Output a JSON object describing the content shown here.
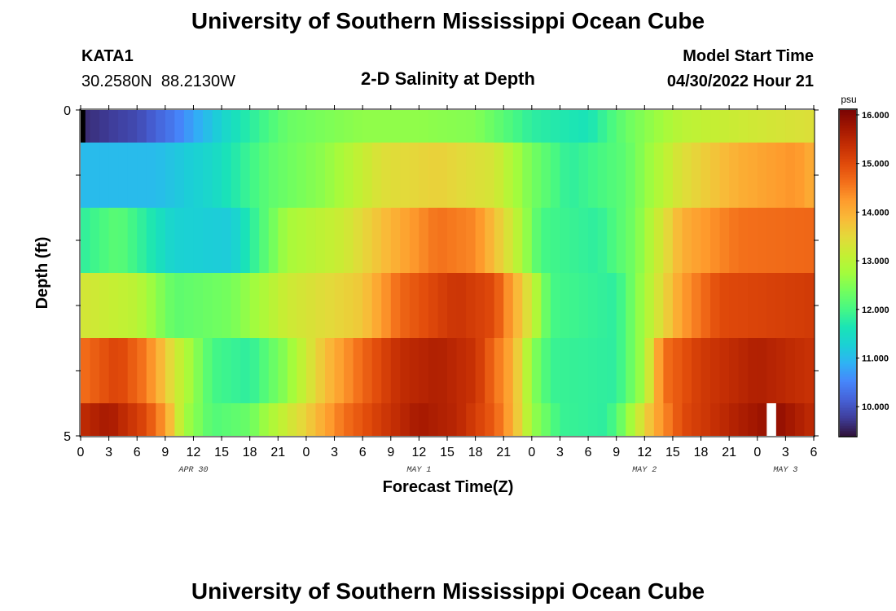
{
  "page": {
    "title": "University of Southern Mississippi Ocean Cube",
    "footer_title": "University of Southern Mississippi Ocean Cube",
    "station": "KATA1",
    "coords": "30.2580N  88.2130W",
    "subtitle": "2-D Salinity at Depth",
    "model_start_label": "Model Start Time",
    "model_start_value": "04/30/2022 Hour 21"
  },
  "chart_data": {
    "type": "heatmap",
    "title": "2-D Salinity at Depth",
    "xlabel": "Forecast Time(Z)",
    "ylabel": "Depth (ft)",
    "x_range_hours": [
      0,
      78
    ],
    "y_range_ft": [
      0,
      5
    ],
    "x_tick_labels": [
      "0",
      "3",
      "6",
      "9",
      "12",
      "15",
      "18",
      "21",
      "0",
      "3",
      "6",
      "9",
      "12",
      "15",
      "18",
      "21",
      "0",
      "3",
      "6",
      "9",
      "12",
      "15",
      "18",
      "21",
      "0",
      "3",
      "6"
    ],
    "y_tick_labels": [
      "0",
      "",
      "",
      "",
      "",
      "5"
    ],
    "day_labels": [
      {
        "hour": 12,
        "label": "APR 30"
      },
      {
        "hour": 36,
        "label": "MAY 1"
      },
      {
        "hour": 60,
        "label": "MAY 2"
      },
      {
        "hour": 75,
        "label": "MAY 3"
      }
    ],
    "colorbar": {
      "unit": "psu",
      "vmin": 9.4,
      "vmax": 16.1,
      "tick_labels": [
        "10.000",
        "11.000",
        "12.000",
        "13.000",
        "14.000",
        "15.000",
        "16.000"
      ],
      "tick_values": [
        10,
        11,
        12,
        13,
        14,
        15,
        16
      ]
    },
    "depth_layers": [
      {
        "depth_top": 0.0,
        "depth_bottom": 0.5,
        "keys": [
          [
            0,
            9.6
          ],
          [
            6,
            9.9
          ],
          [
            10,
            10.4
          ],
          [
            16,
            11.5
          ],
          [
            22,
            12.3
          ],
          [
            30,
            12.6
          ],
          [
            36,
            12.6
          ],
          [
            42,
            12.5
          ],
          [
            48,
            11.8
          ],
          [
            54,
            11.6
          ],
          [
            58,
            12.3
          ],
          [
            64,
            13.0
          ],
          [
            70,
            13.2
          ],
          [
            78,
            13.4
          ]
        ]
      },
      {
        "depth_top": 0.5,
        "depth_bottom": 1.5,
        "keys": [
          [
            0,
            11.0
          ],
          [
            8,
            11.0
          ],
          [
            14,
            11.4
          ],
          [
            20,
            12.2
          ],
          [
            26,
            12.6
          ],
          [
            32,
            13.4
          ],
          [
            38,
            13.6
          ],
          [
            44,
            13.3
          ],
          [
            48,
            12.4
          ],
          [
            52,
            11.8
          ],
          [
            58,
            12.2
          ],
          [
            64,
            13.4
          ],
          [
            70,
            14.0
          ],
          [
            76,
            14.3
          ],
          [
            78,
            14.0
          ]
        ]
      },
      {
        "depth_top": 1.5,
        "depth_bottom": 2.5,
        "keys": [
          [
            0,
            11.8
          ],
          [
            4,
            12.2
          ],
          [
            10,
            11.3
          ],
          [
            16,
            11.2
          ],
          [
            22,
            12.8
          ],
          [
            28,
            13.2
          ],
          [
            32,
            13.8
          ],
          [
            38,
            14.6
          ],
          [
            42,
            14.4
          ],
          [
            46,
            13.2
          ],
          [
            49,
            12.0
          ],
          [
            55,
            11.8
          ],
          [
            59,
            12.4
          ],
          [
            64,
            14.0
          ],
          [
            70,
            14.6
          ],
          [
            78,
            14.7
          ]
        ]
      },
      {
        "depth_top": 2.5,
        "depth_bottom": 3.5,
        "keys": [
          [
            0,
            13.3
          ],
          [
            6,
            13.0
          ],
          [
            10,
            12.2
          ],
          [
            16,
            12.4
          ],
          [
            22,
            13.2
          ],
          [
            30,
            13.7
          ],
          [
            34,
            14.7
          ],
          [
            40,
            15.3
          ],
          [
            44,
            15.0
          ],
          [
            48,
            13.2
          ],
          [
            50,
            12.0
          ],
          [
            57,
            11.8
          ],
          [
            60,
            12.8
          ],
          [
            64,
            14.2
          ],
          [
            68,
            15.0
          ],
          [
            78,
            15.2
          ]
        ]
      },
      {
        "depth_top": 3.5,
        "depth_bottom": 4.5,
        "keys": [
          [
            0,
            14.6
          ],
          [
            4,
            15.1
          ],
          [
            7,
            14.5
          ],
          [
            10,
            13.3
          ],
          [
            14,
            12.0
          ],
          [
            18,
            11.8
          ],
          [
            22,
            12.6
          ],
          [
            26,
            13.8
          ],
          [
            30,
            14.7
          ],
          [
            34,
            15.4
          ],
          [
            38,
            15.6
          ],
          [
            42,
            15.3
          ],
          [
            46,
            14.0
          ],
          [
            48,
            12.6
          ],
          [
            50,
            11.9
          ],
          [
            57,
            11.8
          ],
          [
            60,
            12.8
          ],
          [
            62,
            14.6
          ],
          [
            66,
            15.2
          ],
          [
            72,
            15.6
          ],
          [
            78,
            15.3
          ]
        ]
      },
      {
        "depth_top": 4.5,
        "depth_bottom": 5.0,
        "keys": [
          [
            0,
            15.4
          ],
          [
            3,
            15.7
          ],
          [
            7,
            15.0
          ],
          [
            9,
            14.2
          ],
          [
            11,
            12.8
          ],
          [
            14,
            12.1
          ],
          [
            18,
            12.3
          ],
          [
            20,
            12.8
          ],
          [
            24,
            13.6
          ],
          [
            28,
            14.6
          ],
          [
            32,
            15.2
          ],
          [
            36,
            15.7
          ],
          [
            40,
            15.5
          ],
          [
            44,
            14.8
          ],
          [
            46,
            14.0
          ],
          [
            48,
            12.7
          ],
          [
            51,
            11.9
          ],
          [
            56,
            11.8
          ],
          [
            58,
            12.5
          ],
          [
            61,
            14.0
          ],
          [
            64,
            15.0
          ],
          [
            70,
            15.6
          ],
          [
            74,
            15.9
          ],
          [
            78,
            15.4
          ]
        ]
      }
    ],
    "missing_cells": [
      {
        "hour_start": 0,
        "hour_end": 0.5,
        "depth_top": 0.0,
        "depth_bottom": 0.5,
        "color": "#000000"
      },
      {
        "hour_start": 73,
        "hour_end": 74,
        "depth_top": 4.5,
        "depth_bottom": 5.0,
        "color": "#ffffff"
      }
    ],
    "colormap": [
      "#30123b",
      "#3f3e9c",
      "#4662d8",
      "#4686fb",
      "#2fb2f4",
      "#1bd0d5",
      "#1ae4b6",
      "#46f884",
      "#72fe5e",
      "#a4fc3c",
      "#c5ef33",
      "#e4d93a",
      "#f9ba38",
      "#fe9b2d",
      "#f36f1a",
      "#e14b0b",
      "#c52f04",
      "#a31701",
      "#7a0403"
    ]
  }
}
